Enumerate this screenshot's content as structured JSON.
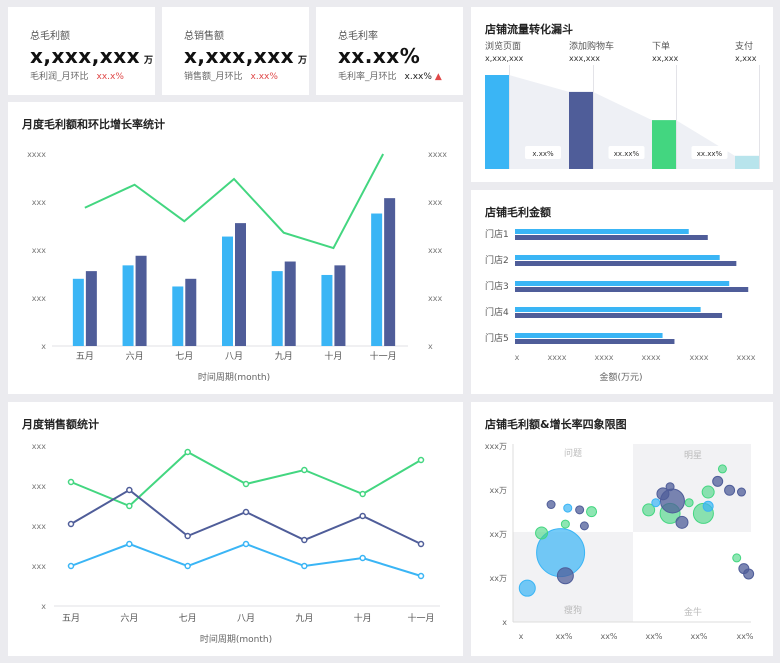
{
  "colors": {
    "blue": "#3ab5f5",
    "navy": "#4f5d99",
    "green": "#43d680",
    "red": "#e04848",
    "quad": "#f2f2f4"
  },
  "kpis": [
    {
      "label": "总毛利额",
      "value": "x,xxx,xxx",
      "unit": "万",
      "sub_label": "毛利润_月环比",
      "sub_value": "xx.x%"
    },
    {
      "label": "总销售额",
      "value": "x,xxx,xxx",
      "unit": "万",
      "sub_label": "销售额_月环比",
      "sub_value": "x.xx%"
    },
    {
      "label": "总毛利率",
      "value": "xx.xx%",
      "unit": "",
      "sub_label": "毛利率_月环比",
      "sub_value": "x.xx%",
      "arrow": "up-arrow-icon"
    }
  ],
  "funnel": {
    "title": "店铺流量转化漏斗",
    "chart_data": {
      "type": "bar",
      "stages": [
        "浏览页面",
        "添加购物车",
        "下单",
        "支付"
      ],
      "value_labels": [
        "x,xxx,xxx",
        "xxx,xxx",
        "xx,xxx",
        "x,xxx"
      ],
      "values": [
        100,
        82,
        52,
        14
      ],
      "rates": [
        "x.xx%",
        "xx.xx%",
        "xx.xx%"
      ]
    }
  },
  "monthly_profit": {
    "title": "月度毛利额和环比增长率统计",
    "xlabel": "时间周期(month)",
    "chart_data": {
      "type": "bar",
      "categories": [
        "五月",
        "六月",
        "七月",
        "八月",
        "九月",
        "十月",
        "十一月"
      ],
      "series": [
        {
          "type": "bar",
          "values": [
            35,
            42,
            31,
            57,
            39,
            37,
            69
          ]
        },
        {
          "type": "bar",
          "values": [
            39,
            47,
            35,
            64,
            44,
            42,
            77
          ]
        },
        {
          "type": "line",
          "values": [
            72,
            84,
            65,
            87,
            59,
            51,
            100
          ]
        }
      ],
      "left_ticks": [
        "x",
        "xxx",
        "xxx",
        "xxx",
        "xxxx"
      ],
      "right_ticks": [
        "x",
        "xxx",
        "xxx",
        "xxx",
        "xxxx"
      ]
    }
  },
  "store_profit": {
    "title": "店铺毛利金额",
    "xlabel": "金额(万元)",
    "chart_data": {
      "type": "bar",
      "orientation": "horizontal",
      "categories": [
        "门店1",
        "门店2",
        "门店3",
        "门店4",
        "门店5"
      ],
      "series": [
        {
          "values": [
            73,
            86,
            90,
            78,
            62
          ]
        },
        {
          "values": [
            81,
            93,
            98,
            87,
            67
          ]
        }
      ],
      "x_ticks": [
        "x",
        "xxxx",
        "xxxx",
        "xxxx",
        "xxxx",
        "xxxx"
      ]
    }
  },
  "monthly_sales": {
    "title": "月度销售额统计",
    "xlabel": "时间周期(month)",
    "chart_data": {
      "type": "line",
      "categories": [
        "五月",
        "六月",
        "七月",
        "八月",
        "九月",
        "十月",
        "十一月"
      ],
      "series": [
        {
          "color": "green",
          "values": [
            62,
            50,
            77,
            61,
            68,
            56,
            73
          ]
        },
        {
          "color": "navy",
          "values": [
            41,
            58,
            35,
            47,
            33,
            45,
            31
          ]
        },
        {
          "color": "blue",
          "values": [
            20,
            31,
            20,
            31,
            20,
            24,
            15
          ]
        }
      ],
      "y_ticks": [
        "x",
        "xxx",
        "xxx",
        "xxx",
        "xxx"
      ]
    }
  },
  "quadrant": {
    "title": "店铺毛利额&增长率四象限图",
    "labels": [
      "问题",
      "明星",
      "瘦狗",
      "金牛"
    ],
    "chart_data": {
      "type": "scatter",
      "x_ticks": [
        "x",
        "xx%",
        "xx%",
        "xx%",
        "xx%",
        "xx%"
      ],
      "y_ticks": [
        "x",
        "xx万",
        "xx万",
        "xx万",
        "xxx万"
      ],
      "points": [
        {
          "x": 20,
          "y": 39,
          "r": 24,
          "c": "blue"
        },
        {
          "x": 6,
          "y": 19,
          "r": 8,
          "c": "blue"
        },
        {
          "x": 12,
          "y": 50,
          "r": 6,
          "c": "green"
        },
        {
          "x": 22,
          "y": 26,
          "r": 8,
          "c": "navy"
        },
        {
          "x": 22,
          "y": 55,
          "r": 4,
          "c": "green"
        },
        {
          "x": 30,
          "y": 54,
          "r": 4,
          "c": "navy"
        },
        {
          "x": 33,
          "y": 62,
          "r": 5,
          "c": "green"
        },
        {
          "x": 28,
          "y": 63,
          "r": 4,
          "c": "navy"
        },
        {
          "x": 23,
          "y": 64,
          "r": 4,
          "c": "blue"
        },
        {
          "x": 16,
          "y": 66,
          "r": 4,
          "c": "navy"
        },
        {
          "x": 66,
          "y": 61,
          "r": 10,
          "c": "green"
        },
        {
          "x": 71,
          "y": 56,
          "r": 6,
          "c": "navy"
        },
        {
          "x": 80,
          "y": 61,
          "r": 10,
          "c": "green"
        },
        {
          "x": 82,
          "y": 65,
          "r": 5,
          "c": "blue"
        },
        {
          "x": 74,
          "y": 67,
          "r": 4,
          "c": "green"
        },
        {
          "x": 67,
          "y": 68,
          "r": 12,
          "c": "navy"
        },
        {
          "x": 57,
          "y": 63,
          "r": 6,
          "c": "green"
        },
        {
          "x": 60,
          "y": 67,
          "r": 4,
          "c": "blue"
        },
        {
          "x": 63,
          "y": 72,
          "r": 6,
          "c": "navy"
        },
        {
          "x": 66,
          "y": 76,
          "r": 4,
          "c": "navy"
        },
        {
          "x": 82,
          "y": 73,
          "r": 6,
          "c": "green"
        },
        {
          "x": 86,
          "y": 79,
          "r": 5,
          "c": "navy"
        },
        {
          "x": 88,
          "y": 86,
          "r": 4,
          "c": "green"
        },
        {
          "x": 91,
          "y": 74,
          "r": 5,
          "c": "navy"
        },
        {
          "x": 96,
          "y": 73,
          "r": 4,
          "c": "navy"
        },
        {
          "x": 94,
          "y": 36,
          "r": 4,
          "c": "green"
        },
        {
          "x": 97,
          "y": 30,
          "r": 5,
          "c": "navy"
        },
        {
          "x": 99,
          "y": 27,
          "r": 5,
          "c": "navy"
        }
      ]
    }
  }
}
